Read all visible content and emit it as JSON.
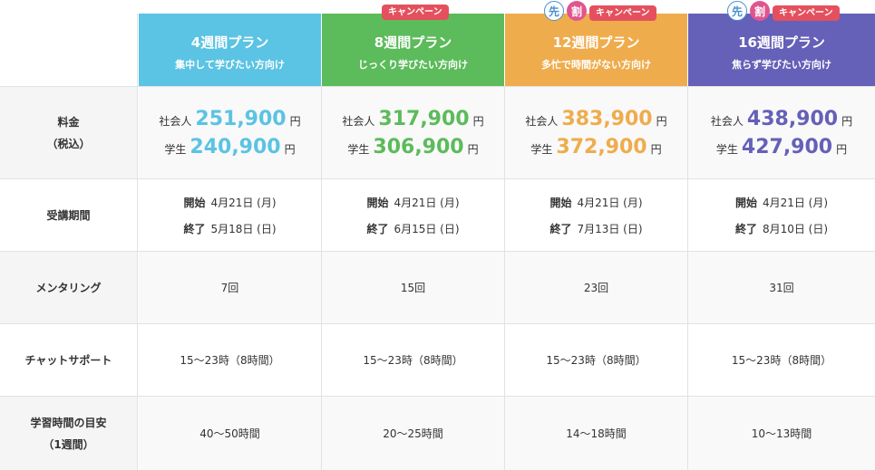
{
  "plans": [
    {
      "name": "4週間プラン",
      "sub": "集中して学びたい方向け",
      "campaign": "",
      "saki": false,
      "price_worker": "251,900",
      "price_student": "240,900",
      "start": "4月21日 (月)",
      "end": "5月18日 (日)",
      "mentoring": "7回",
      "chat": "15〜23時（8時間）",
      "study": "40〜50時間"
    },
    {
      "name": "8週間プラン",
      "sub": "じっくり学びたい方向け",
      "campaign": "キャンペーン",
      "saki": false,
      "price_worker": "317,900",
      "price_student": "306,900",
      "start": "4月21日 (月)",
      "end": "6月15日 (日)",
      "mentoring": "15回",
      "chat": "15〜23時（8時間）",
      "study": "20〜25時間"
    },
    {
      "name": "12週間プラン",
      "sub": "多忙で時間がない方向け",
      "campaign": "キャンペーン",
      "saki": true,
      "price_worker": "383,900",
      "price_student": "372,900",
      "start": "4月21日 (月)",
      "end": "7月13日 (日)",
      "mentoring": "23回",
      "chat": "15〜23時（8時間）",
      "study": "14〜18時間"
    },
    {
      "name": "16週間プラン",
      "sub": "焦らず学びたい方向け",
      "campaign": "キャンペーン",
      "saki": true,
      "price_worker": "438,900",
      "price_student": "427,900",
      "start": "4月21日 (月)",
      "end": "8月10日 (日)",
      "mentoring": "31回",
      "chat": "15〜23時（8時間）",
      "study": "10〜13時間"
    }
  ],
  "labels": {
    "fee": "料金",
    "fee_sub": "（税込）",
    "period": "受講期間",
    "mentoring": "メンタリング",
    "chat": "チャットサポート",
    "study": "学習時間の目安",
    "study_sub": "（1週間）",
    "worker": "社会人",
    "student": "学生",
    "yen": "円",
    "start": "開始",
    "end": "終了",
    "saki1": "先",
    "saki2": "割"
  },
  "colors": {
    "plan1": "#5bc3e3",
    "plan2": "#5cbb5b",
    "plan3": "#efac4d",
    "plan4": "#6560b8",
    "campaign": "#e4505d"
  }
}
